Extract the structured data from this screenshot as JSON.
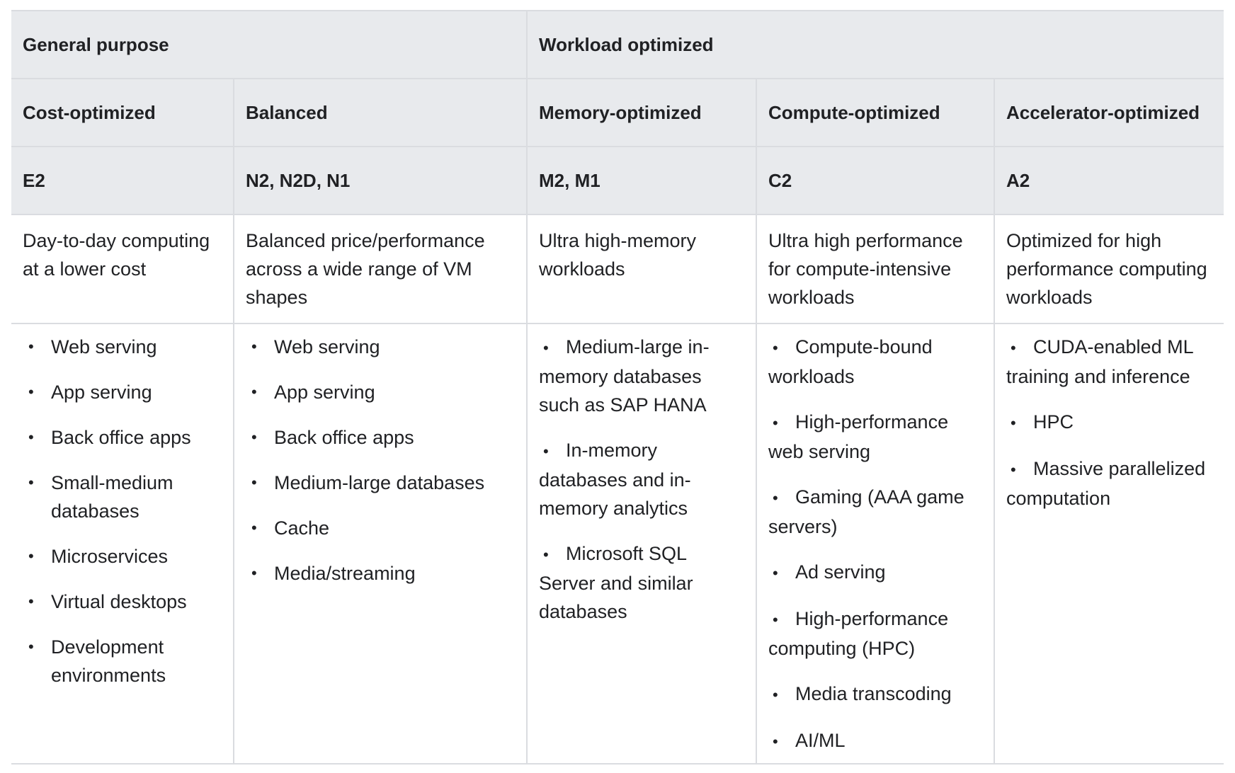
{
  "group_headers": [
    "General purpose",
    "Workload optimized"
  ],
  "category_headers": [
    "Cost-optimized",
    "Balanced",
    "Memory-optimized",
    "Compute-optimized",
    "Accelerator-optimized"
  ],
  "machine_families": [
    "E2",
    "N2, N2D, N1",
    "M2, M1",
    "C2",
    "A2"
  ],
  "descriptions": [
    "Day-to-day computing at a lower cost",
    "Balanced price/performance across a wide range of VM shapes",
    "Ultra high-memory workloads",
    "Ultra high performance for compute-intensive workloads",
    "Optimized for high performance computing workloads"
  ],
  "bullet_symbol": "•",
  "use_cases": [
    [
      "Web serving",
      "App serving",
      "Back office apps",
      "Small-medium databases",
      "Microservices",
      "Virtual desktops",
      "Development environments"
    ],
    [
      "Web serving",
      "App serving",
      "Back office apps",
      "Medium-large databases",
      "Cache",
      "Media/streaming"
    ],
    [
      "Medium-large in-memory databases such as SAP HANA",
      "In-memory databases and in-memory analytics",
      "Microsoft SQL Server and similar databases"
    ],
    [
      "Compute-bound workloads",
      "High-performance web serving",
      "Gaming (AAA game servers)",
      "Ad serving",
      "High-performance computing (HPC)",
      "Media transcoding",
      "AI/ML"
    ],
    [
      "CUDA-enabled ML training and inference",
      "HPC",
      "Massive parallelized computation"
    ]
  ],
  "colors": {
    "header_bg": "#e8eaed",
    "border": "#dadce0",
    "text": "#202124"
  }
}
